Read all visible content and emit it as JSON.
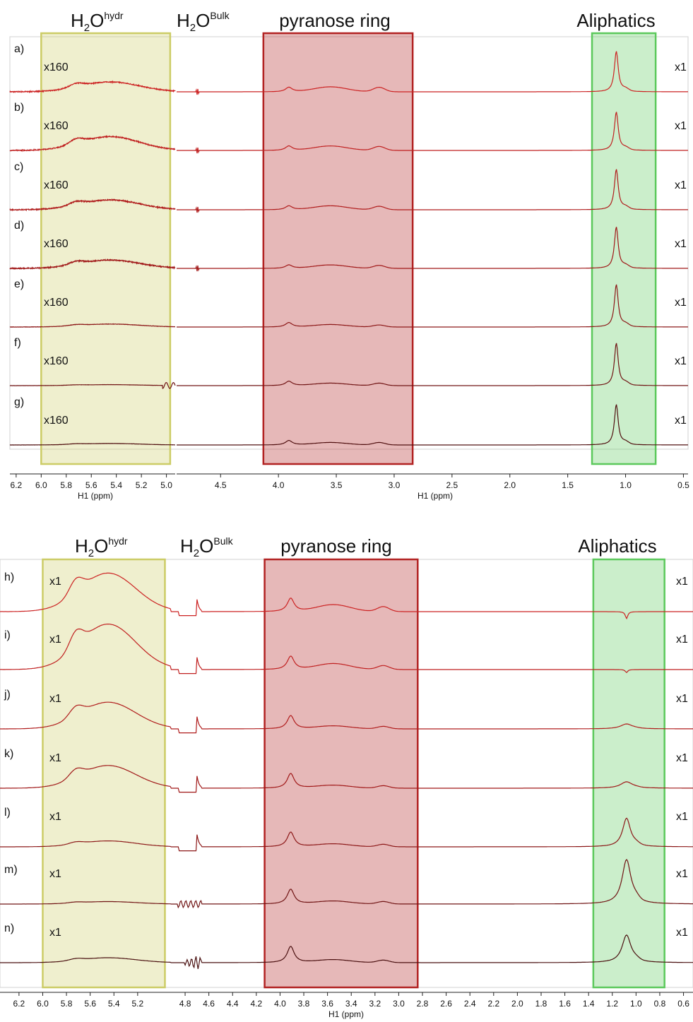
{
  "chart_data": [
    {
      "type": "line",
      "panel": "top",
      "chart_kind": "stacked 1H NMR spectra",
      "region_labels": {
        "hydr": {
          "base": "H",
          "sub": "2",
          "rest": "O",
          "sup": "hydr"
        },
        "bulk": {
          "base": "H",
          "sub": "2",
          "rest": "O",
          "sup": "Bulk"
        },
        "ring": "pyranose ring",
        "aliph": "Aliphatics"
      },
      "regions_ppm": {
        "hydr": [
          4.97,
          6.0
        ],
        "ring": [
          2.84,
          4.13
        ],
        "aliph": [
          0.74,
          1.29
        ]
      },
      "region_colors": {
        "hydr": "#cccc66",
        "ring": "#b22222",
        "aliph": "#5cc95c"
      },
      "xlabel": "H1 (ppm)",
      "axis_segments": [
        {
          "range": [
            6.25,
            4.93
          ],
          "ticks": [
            "6.2",
            "6.0",
            "5.8",
            "5.6",
            "5.4",
            "5.2",
            "5.0"
          ]
        },
        {
          "range": [
            4.88,
            0.46
          ],
          "ticks": [
            "4.5",
            "4.0",
            "3.5",
            "3.0",
            "2.5",
            "2.0",
            "1.5",
            "1.0",
            "0.5"
          ]
        }
      ],
      "series": [
        {
          "label": "a)",
          "left_scale": "x160",
          "right_scale": "x1",
          "color": "#cc2222",
          "bulk_feature": "small",
          "ring_heights": [
            0.09,
            0.1,
            0.09
          ],
          "aliph_height": 0.82,
          "aliph_width": 0.02,
          "aliph_dip": false,
          "hydr_height": 0.2,
          "hydr_noise": 0.9
        },
        {
          "label": "b)",
          "left_scale": "x160",
          "right_scale": "x1",
          "color": "#c02020",
          "bulk_feature": "small",
          "ring_heights": [
            0.09,
            0.09,
            0.08
          ],
          "aliph_height": 0.78,
          "aliph_width": 0.02,
          "aliph_dip": false,
          "hydr_height": 0.28,
          "hydr_noise": 0.9
        },
        {
          "label": "c)",
          "left_scale": "x160",
          "right_scale": "x1",
          "color": "#b01c1c",
          "bulk_feature": "small",
          "ring_heights": [
            0.08,
            0.08,
            0.07
          ],
          "aliph_height": 0.82,
          "aliph_width": 0.02,
          "aliph_dip": false,
          "hydr_height": 0.2,
          "hydr_noise": 1.0
        },
        {
          "label": "d)",
          "left_scale": "x160",
          "right_scale": "x1",
          "color": "#a01818",
          "bulk_feature": "small",
          "ring_heights": [
            0.07,
            0.07,
            0.06
          ],
          "aliph_height": 0.84,
          "aliph_width": 0.02,
          "aliph_dip": false,
          "hydr_height": 0.17,
          "hydr_noise": 1.0
        },
        {
          "label": "e)",
          "left_scale": "x160",
          "right_scale": "x1",
          "color": "#8c1818",
          "bulk_feature": "none",
          "ring_heights": [
            0.09,
            0.05,
            0.04
          ],
          "aliph_height": 0.86,
          "aliph_width": 0.02,
          "aliph_dip": false,
          "hydr_height": 0.06,
          "hydr_noise": 0.3
        },
        {
          "label": "f)",
          "left_scale": "x160",
          "right_scale": "x1",
          "color": "#701414",
          "bulk_feature": "ring-edge",
          "ring_heights": [
            0.09,
            0.05,
            0.05
          ],
          "aliph_height": 0.86,
          "aliph_width": 0.02,
          "aliph_dip": false,
          "hydr_height": 0.02,
          "hydr_noise": 0.15
        },
        {
          "label": "g)",
          "left_scale": "x160",
          "right_scale": "x1",
          "color": "#501010",
          "bulk_feature": "none",
          "ring_heights": [
            0.09,
            0.05,
            0.05
          ],
          "aliph_height": 0.82,
          "aliph_width": 0.02,
          "aliph_dip": false,
          "hydr_height": 0.03,
          "hydr_noise": 0.15
        }
      ]
    },
    {
      "type": "line",
      "panel": "bottom",
      "chart_kind": "stacked 1H NMR spectra",
      "region_labels": {
        "hydr": {
          "base": "H",
          "sub": "2",
          "rest": "O",
          "sup": "hydr"
        },
        "bulk": {
          "base": "H",
          "sub": "2",
          "rest": "O",
          "sup": "Bulk"
        },
        "ring": "pyranose ring",
        "aliph": "Aliphatics"
      },
      "regions_ppm": {
        "hydr": [
          4.97,
          6.0
        ],
        "ring": [
          2.84,
          4.13
        ],
        "aliph": [
          0.76,
          1.36
        ]
      },
      "region_colors": {
        "hydr": "#cccc66",
        "ring": "#b22222",
        "aliph": "#5cc95c"
      },
      "xlabel": "H1 (ppm)",
      "axis_segments": [
        {
          "range": [
            6.36,
            0.52
          ],
          "ticks": [
            "6.2",
            "6.0",
            "5.8",
            "5.6",
            "5.4",
            "5.2",
            "4.8",
            "4.6",
            "4.4",
            "4.2",
            "4.0",
            "3.8",
            "3.6",
            "3.4",
            "3.2",
            "3.0",
            "2.8",
            "2.6",
            "2.4",
            "2.2",
            "2.0",
            "1.8",
            "1.6",
            "1.4",
            "1.2",
            "1.0",
            "0.8",
            "0.6"
          ]
        }
      ],
      "series": [
        {
          "label": "h)",
          "left_scale": "x1",
          "right_scale": "x1",
          "color": "#cc2222",
          "bulk_feature": "step",
          "ring_heights": [
            0.27,
            0.14,
            0.1
          ],
          "aliph_height": -0.14,
          "aliph_width": 0.02,
          "aliph_dip": true,
          "hydr_height": 0.78,
          "hydr_noise": 0.1
        },
        {
          "label": "i)",
          "left_scale": "x1",
          "right_scale": "x1",
          "color": "#c02020",
          "bulk_feature": "step",
          "ring_heights": [
            0.27,
            0.12,
            0.08
          ],
          "aliph_height": -0.06,
          "aliph_width": 0.03,
          "aliph_dip": true,
          "hydr_height": 0.92,
          "hydr_noise": 0.1
        },
        {
          "label": "j)",
          "left_scale": "x1",
          "right_scale": "x1",
          "color": "#b01c1c",
          "bulk_feature": "step",
          "ring_heights": [
            0.27,
            0.06,
            0.05
          ],
          "aliph_height": 0.1,
          "aliph_width": 0.06,
          "aliph_dip": false,
          "hydr_height": 0.54,
          "hydr_noise": 0.05
        },
        {
          "label": "k)",
          "left_scale": "x1",
          "right_scale": "x1",
          "color": "#a01818",
          "bulk_feature": "step",
          "ring_heights": [
            0.3,
            0.06,
            0.05
          ],
          "aliph_height": 0.13,
          "aliph_width": 0.06,
          "aliph_dip": false,
          "hydr_height": 0.46,
          "hydr_noise": 0.05
        },
        {
          "label": "l)",
          "left_scale": "x1",
          "right_scale": "x1",
          "color": "#8c1818",
          "bulk_feature": "step",
          "ring_heights": [
            0.3,
            0.06,
            0.05
          ],
          "aliph_height": 0.58,
          "aliph_width": 0.04,
          "aliph_dip": false,
          "hydr_height": 0.12,
          "hydr_noise": 0.03
        },
        {
          "label": "m)",
          "left_scale": "x1",
          "right_scale": "x1",
          "color": "#701414",
          "bulk_feature": "wiggles",
          "ring_heights": [
            0.3,
            0.06,
            0.05
          ],
          "aliph_height": 0.9,
          "aliph_width": 0.045,
          "aliph_dip": false,
          "hydr_height": 0.05,
          "hydr_noise": 0.03
        },
        {
          "label": "n)",
          "left_scale": "x1",
          "right_scale": "x1",
          "color": "#4a1010",
          "bulk_feature": "bigwiggles",
          "ring_heights": [
            0.33,
            0.06,
            0.05
          ],
          "aliph_height": 0.56,
          "aliph_width": 0.045,
          "aliph_dip": false,
          "hydr_height": 0.1,
          "hydr_noise": 0.03
        }
      ]
    }
  ]
}
